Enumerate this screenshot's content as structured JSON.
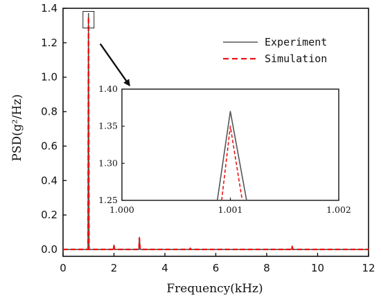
{
  "chart_data": {
    "type": "line",
    "xlabel": "Frequency(kHz)",
    "ylabel": "PSD(g²/Hz)",
    "xlim": [
      0,
      12
    ],
    "ylim": [
      -0.04,
      1.4
    ],
    "xticks": [
      "0",
      "2",
      "4",
      "6",
      "8",
      "10",
      "12"
    ],
    "yticks": [
      "0.0",
      "0.2",
      "0.4",
      "0.6",
      "0.8",
      "1.0",
      "1.2",
      "1.4"
    ],
    "grid": false,
    "legend_position": "top-right",
    "series": [
      {
        "name": "Experiment",
        "color": "#555555",
        "style": "solid",
        "points": [
          [
            0,
            0
          ],
          [
            0.98,
            0
          ],
          [
            1.0,
            1.37
          ],
          [
            1.02,
            0
          ],
          [
            1.97,
            0
          ],
          [
            2.0,
            0.025
          ],
          [
            2.03,
            0
          ],
          [
            2.98,
            0
          ],
          [
            3.0,
            0.07
          ],
          [
            3.03,
            0
          ],
          [
            4.98,
            0
          ],
          [
            5.0,
            0.008
          ],
          [
            5.02,
            0
          ],
          [
            8.98,
            0
          ],
          [
            9.0,
            0.02
          ],
          [
            9.03,
            0
          ],
          [
            12,
            0
          ]
        ]
      },
      {
        "name": "Simulation",
        "color": "#ee1111",
        "style": "dashed",
        "points": [
          [
            0,
            0
          ],
          [
            0.98,
            0
          ],
          [
            1.0,
            1.35
          ],
          [
            1.02,
            0
          ],
          [
            1.97,
            0
          ],
          [
            2.0,
            0.02
          ],
          [
            2.03,
            0
          ],
          [
            2.98,
            0
          ],
          [
            3.0,
            0.065
          ],
          [
            3.03,
            0
          ],
          [
            4.98,
            0
          ],
          [
            5.0,
            0.006
          ],
          [
            5.02,
            0
          ],
          [
            8.98,
            0
          ],
          [
            9.0,
            0.015
          ],
          [
            9.03,
            0
          ],
          [
            12,
            0
          ]
        ]
      }
    ],
    "inset": {
      "xlim": [
        1.0,
        1.002
      ],
      "ylim": [
        1.25,
        1.4
      ],
      "xticks": [
        "1.000",
        "1.001",
        "1.002"
      ],
      "yticks": [
        "1.25",
        "1.30",
        "1.35",
        "1.40"
      ],
      "series": [
        {
          "name": "Experiment",
          "points": [
            [
              1.00088,
              1.25
            ],
            [
              1.001,
              1.37
            ],
            [
              1.00115,
              1.25
            ]
          ]
        },
        {
          "name": "Simulation",
          "points": [
            [
              1.00092,
              1.25
            ],
            [
              1.001,
              1.35
            ],
            [
              1.00111,
              1.25
            ]
          ]
        }
      ]
    }
  }
}
